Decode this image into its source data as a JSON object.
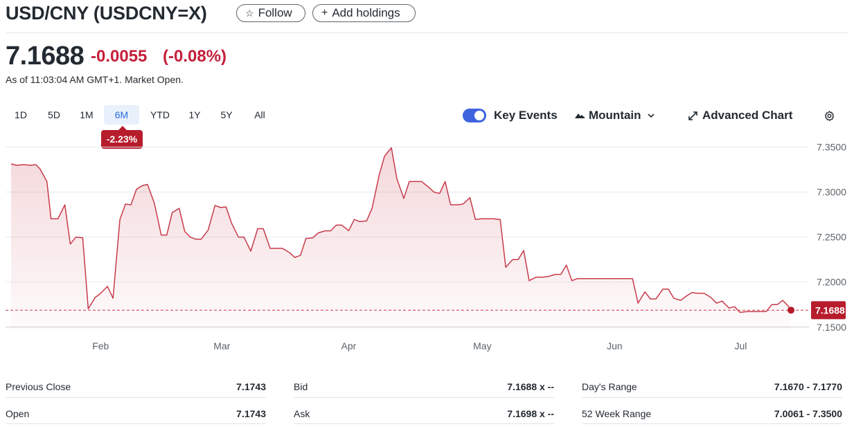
{
  "header": {
    "title": "USD/CNY (USDCNY=X)",
    "follow_label": "Follow",
    "add_holdings_label": "Add holdings"
  },
  "quote": {
    "price": "7.1688",
    "change": "-0.0055",
    "change_pct": "(-0.08%)",
    "as_of": "As of 11:03:04 AM GMT+1. Market Open."
  },
  "ranges": {
    "items": [
      "1D",
      "5D",
      "1M",
      "6M",
      "YTD",
      "1Y",
      "5Y",
      "All"
    ],
    "active": "6M",
    "period_change": "-2.23%"
  },
  "toolbar": {
    "key_events_label": "Key Events",
    "key_events_on": true,
    "chart_style_label": "Mountain",
    "advanced_chart_label": "Advanced Chart"
  },
  "chart_data": {
    "type": "area",
    "x_tick_labels": [
      "Feb",
      "Mar",
      "Apr",
      "May",
      "Jun",
      "Jul"
    ],
    "y_tick_labels": [
      "7.3500",
      "7.3000",
      "7.2500",
      "7.2000",
      "7.1500"
    ],
    "y_ticks": [
      7.35,
      7.3,
      7.25,
      7.2,
      7.15
    ],
    "ylim": [
      7.146,
      7.352
    ],
    "current_value": 7.1688,
    "current_label": "7.1688",
    "x_range": [
      0,
      1140
    ],
    "month_positions": {
      "Feb": 134,
      "Mar": 310,
      "Apr": 494,
      "May": 688,
      "Jun": 880,
      "Jul": 1063
    },
    "series": [
      {
        "values": [
          [
            4,
            7.3313
          ],
          [
            12,
            7.3298
          ],
          [
            22,
            7.3305
          ],
          [
            32,
            7.3298
          ],
          [
            40,
            7.3305
          ],
          [
            46,
            7.3258
          ],
          [
            56,
            7.3117
          ],
          [
            62,
            7.2703
          ],
          [
            72,
            7.2703
          ],
          [
            82,
            7.2859
          ],
          [
            90,
            7.2422
          ],
          [
            98,
            7.25
          ],
          [
            108,
            7.2492
          ],
          [
            116,
            7.1703
          ],
          [
            126,
            7.1828
          ],
          [
            134,
            7.1875
          ],
          [
            144,
            7.1953
          ],
          [
            152,
            7.182
          ],
          [
            162,
            7.2695
          ],
          [
            170,
            7.2867
          ],
          [
            178,
            7.2859
          ],
          [
            186,
            7.3031
          ],
          [
            194,
            7.307
          ],
          [
            202,
            7.3086
          ],
          [
            212,
            7.2875
          ],
          [
            222,
            7.2523
          ],
          [
            230,
            7.2523
          ],
          [
            238,
            7.2773
          ],
          [
            248,
            7.282
          ],
          [
            256,
            7.2562
          ],
          [
            264,
            7.25
          ],
          [
            272,
            7.2477
          ],
          [
            280,
            7.2477
          ],
          [
            290,
            7.2578
          ],
          [
            300,
            7.2852
          ],
          [
            308,
            7.2828
          ],
          [
            316,
            7.2836
          ],
          [
            324,
            7.2656
          ],
          [
            334,
            7.25
          ],
          [
            342,
            7.25
          ],
          [
            352,
            7.2344
          ],
          [
            362,
            7.2594
          ],
          [
            370,
            7.2594
          ],
          [
            380,
            7.2375
          ],
          [
            390,
            7.2375
          ],
          [
            398,
            7.2375
          ],
          [
            408,
            7.2328
          ],
          [
            416,
            7.2273
          ],
          [
            424,
            7.2297
          ],
          [
            432,
            7.2484
          ],
          [
            442,
            7.2492
          ],
          [
            450,
            7.2547
          ],
          [
            460,
            7.257
          ],
          [
            468,
            7.257
          ],
          [
            476,
            7.2633
          ],
          [
            484,
            7.2633
          ],
          [
            494,
            7.257
          ],
          [
            502,
            7.2695
          ],
          [
            510,
            7.2672
          ],
          [
            520,
            7.268
          ],
          [
            528,
            7.282
          ],
          [
            538,
            7.318
          ],
          [
            546,
            7.3398
          ],
          [
            556,
            7.3492
          ],
          [
            564,
            7.3148
          ],
          [
            574,
            7.293
          ],
          [
            582,
            7.3117
          ],
          [
            592,
            7.3117
          ],
          [
            600,
            7.3117
          ],
          [
            610,
            7.3055
          ],
          [
            618,
            7.3
          ],
          [
            626,
            7.2984
          ],
          [
            634,
            7.3117
          ],
          [
            642,
            7.2859
          ],
          [
            652,
            7.2859
          ],
          [
            660,
            7.2867
          ],
          [
            670,
            7.2938
          ],
          [
            678,
            7.2695
          ],
          [
            686,
            7.2703
          ],
          [
            696,
            7.2703
          ],
          [
            704,
            7.2703
          ],
          [
            714,
            7.2695
          ],
          [
            722,
            7.2164
          ],
          [
            732,
            7.225
          ],
          [
            740,
            7.225
          ],
          [
            748,
            7.2352
          ],
          [
            756,
            7.2016
          ],
          [
            766,
            7.2055
          ],
          [
            776,
            7.2055
          ],
          [
            784,
            7.2063
          ],
          [
            794,
            7.2086
          ],
          [
            802,
            7.2086
          ],
          [
            810,
            7.2188
          ],
          [
            818,
            7.2016
          ],
          [
            826,
            7.2039
          ],
          [
            836,
            7.2039
          ],
          [
            844,
            7.2039
          ],
          [
            854,
            7.2039
          ],
          [
            862,
            7.2039
          ],
          [
            870,
            7.2039
          ],
          [
            880,
            7.2039
          ],
          [
            888,
            7.2039
          ],
          [
            896,
            7.2039
          ],
          [
            906,
            7.2039
          ],
          [
            914,
            7.1766
          ],
          [
            924,
            7.1891
          ],
          [
            932,
            7.1813
          ],
          [
            940,
            7.1813
          ],
          [
            950,
            7.1922
          ],
          [
            958,
            7.1922
          ],
          [
            966,
            7.182
          ],
          [
            976,
            7.1797
          ],
          [
            984,
            7.1844
          ],
          [
            992,
            7.1883
          ],
          [
            1002,
            7.1875
          ],
          [
            1010,
            7.1875
          ],
          [
            1020,
            7.1828
          ],
          [
            1028,
            7.1766
          ],
          [
            1036,
            7.1789
          ],
          [
            1046,
            7.1711
          ],
          [
            1054,
            7.1727
          ],
          [
            1062,
            7.1664
          ],
          [
            1072,
            7.1672
          ],
          [
            1080,
            7.1672
          ],
          [
            1090,
            7.1672
          ],
          [
            1100,
            7.1672
          ],
          [
            1108,
            7.175
          ],
          [
            1116,
            7.175
          ],
          [
            1124,
            7.1797
          ],
          [
            1132,
            7.1734
          ],
          [
            1136,
            7.1688
          ]
        ]
      }
    ]
  },
  "stats": {
    "col1": [
      {
        "label": "Previous Close",
        "value": "7.1743"
      },
      {
        "label": "Open",
        "value": "7.1743"
      }
    ],
    "col2": [
      {
        "label": "Bid",
        "value": "7.1688 x --"
      },
      {
        "label": "Ask",
        "value": "7.1698 x --"
      }
    ],
    "col3": [
      {
        "label": "Day's Range",
        "value": "7.1670 - 7.1770"
      },
      {
        "label": "52 Week Range",
        "value": "7.0061 - 7.3500"
      }
    ]
  },
  "colors": {
    "line": "#c73a4a",
    "negative": "#c41f3a",
    "accent": "#3d63dd",
    "badge": "#b71c2c"
  },
  "icons": {
    "follow": "star-outline-icon",
    "add": "plus-icon",
    "mountain": "mountain-icon",
    "chevron": "chevron-down-icon",
    "advanced": "expand-arrows-icon",
    "settings": "gear-icon"
  }
}
